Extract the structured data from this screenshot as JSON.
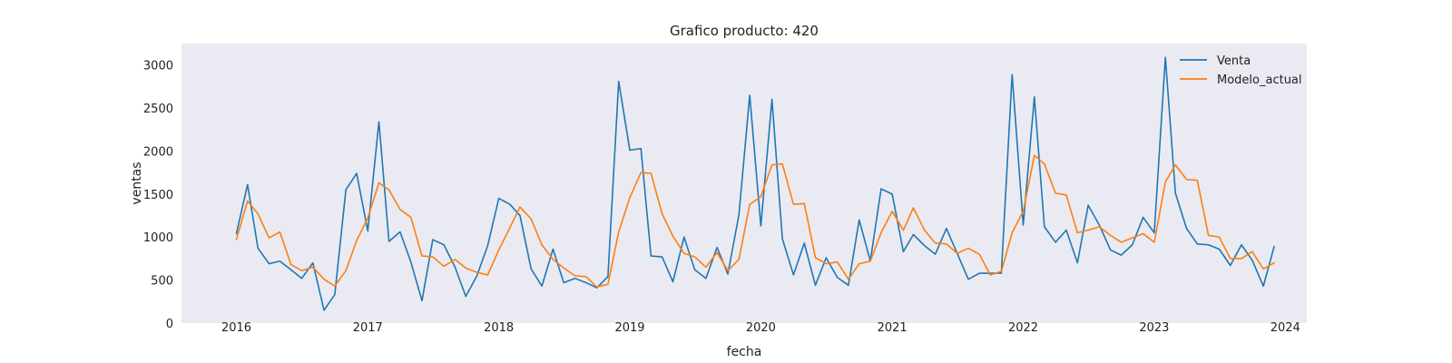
{
  "chart_data": {
    "type": "line",
    "title": "Grafico producto: 420",
    "xlabel": "fecha",
    "ylabel": "ventas",
    "xlim": [
      "2015-08-01",
      "2024-03-01"
    ],
    "ylim": [
      0,
      3250
    ],
    "x_ticks": [
      "2016",
      "2017",
      "2018",
      "2019",
      "2020",
      "2021",
      "2022",
      "2023",
      "2024"
    ],
    "y_ticks": [
      0,
      500,
      1000,
      1500,
      2000,
      2500,
      3000
    ],
    "grid": false,
    "background": "#eaeaf2",
    "legend_position": "top-right",
    "start": "2016-01",
    "frequency": "monthly",
    "series": [
      {
        "name": "Venta",
        "color": "#1f77b4",
        "values": [
          1040,
          1610,
          870,
          690,
          720,
          620,
          520,
          700,
          150,
          330,
          1550,
          1740,
          1070,
          2340,
          950,
          1060,
          710,
          260,
          970,
          910,
          650,
          310,
          550,
          900,
          1450,
          1380,
          1250,
          630,
          430,
          860,
          470,
          520,
          470,
          410,
          540,
          2810,
          2010,
          2030,
          780,
          770,
          480,
          1000,
          620,
          520,
          880,
          570,
          1260,
          2650,
          1130,
          2600,
          980,
          560,
          930,
          440,
          760,
          530,
          440,
          1200,
          720,
          1560,
          1500,
          830,
          1030,
          900,
          800,
          1100,
          810,
          510,
          580,
          580,
          580,
          2890,
          1140,
          2630,
          1120,
          940,
          1080,
          700,
          1370,
          1140,
          850,
          790,
          910,
          1230,
          1050,
          3090,
          1510,
          1100,
          920,
          910,
          860,
          670,
          910,
          730,
          430,
          890
        ]
      },
      {
        "name": "Modelo_actual",
        "color": "#ff7f0e",
        "values": [
          970,
          1420,
          1270,
          990,
          1060,
          680,
          610,
          650,
          510,
          430,
          610,
          960,
          1220,
          1630,
          1550,
          1320,
          1230,
          780,
          770,
          660,
          740,
          640,
          590,
          560,
          850,
          1110,
          1350,
          1210,
          910,
          740,
          640,
          550,
          540,
          420,
          450,
          1060,
          1460,
          1750,
          1740,
          1270,
          1010,
          810,
          770,
          650,
          820,
          610,
          740,
          1380,
          1470,
          1840,
          1850,
          1380,
          1390,
          760,
          690,
          710,
          510,
          690,
          720,
          1050,
          1300,
          1080,
          1340,
          1080,
          930,
          920,
          810,
          870,
          800,
          560,
          600,
          1050,
          1300,
          1950,
          1850,
          1510,
          1490,
          1050,
          1080,
          1120,
          1020,
          940,
          990,
          1040,
          940,
          1640,
          1840,
          1670,
          1660,
          1020,
          1000,
          750,
          750,
          830,
          630,
          700
        ]
      }
    ]
  }
}
